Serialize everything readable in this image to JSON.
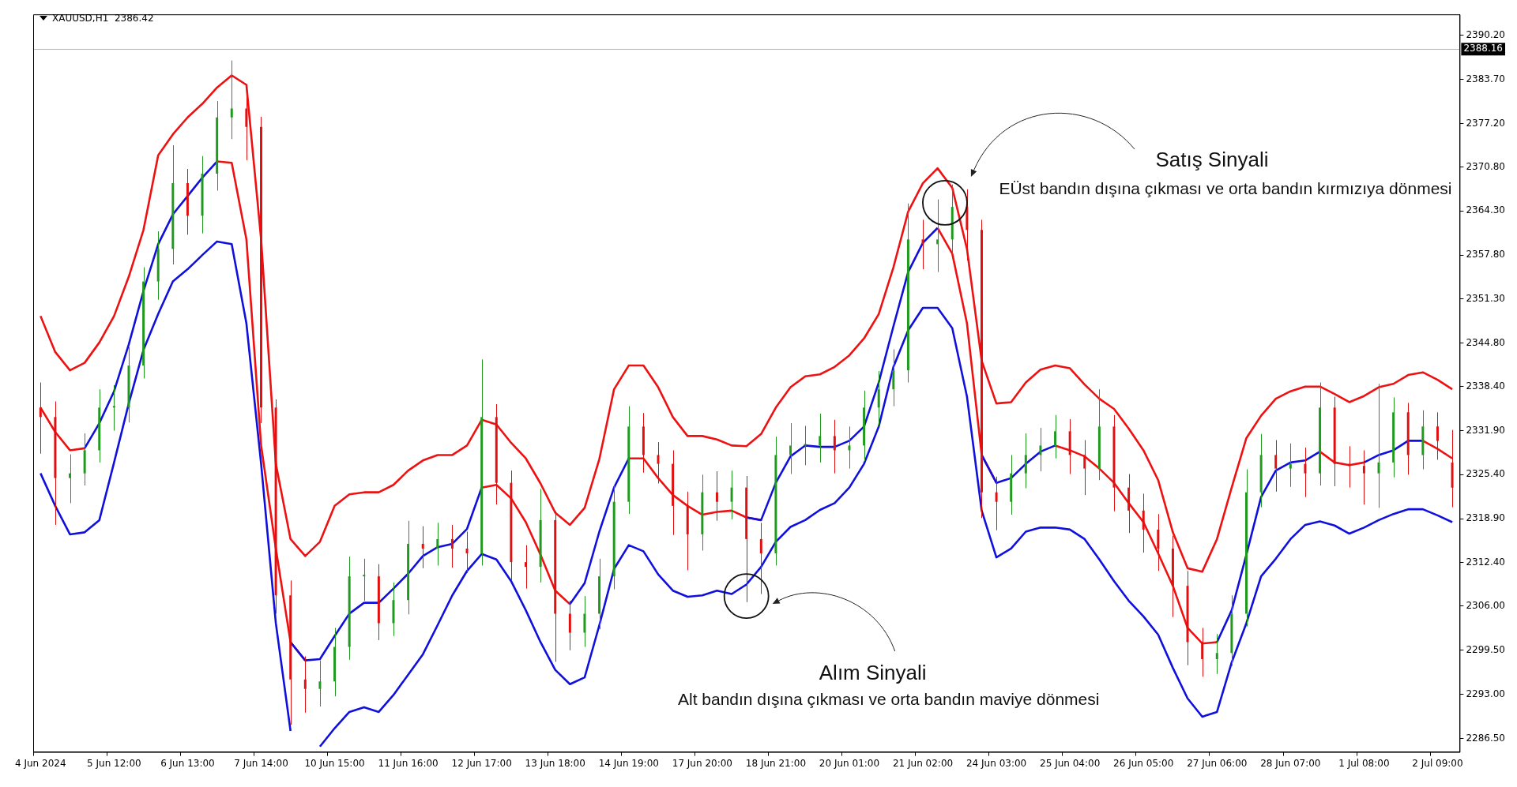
{
  "chart_data": {
    "type": "candlestick",
    "title": "XAUUSD,H1  2386.42",
    "categories": [
      "4 Jun 2024",
      null,
      null,
      null,
      null,
      "5 Jun 12:00",
      null,
      null,
      null,
      null,
      "6 Jun 13:00",
      null,
      null,
      null,
      null,
      "7 Jun 14:00",
      null,
      null,
      null,
      null,
      "10 Jun 15:00",
      null,
      null,
      null,
      null,
      "11 Jun 16:00",
      null,
      null,
      null,
      null,
      "12 Jun 17:00",
      null,
      null,
      null,
      null,
      "13 Jun 18:00",
      null,
      null,
      null,
      null,
      "14 Jun 19:00",
      null,
      null,
      null,
      null,
      "17 Jun 20:00",
      null,
      null,
      null,
      null,
      "18 Jun 21:00",
      null,
      null,
      null,
      null,
      "20 Jun 01:00",
      null,
      null,
      null,
      null,
      "21 Jun 02:00",
      null,
      null,
      null,
      null,
      "24 Jun 03:00",
      null,
      null,
      null,
      null,
      "25 Jun 04:00",
      null,
      null,
      null,
      null,
      "26 Jun 05:00",
      null,
      null,
      null,
      null,
      "27 Jun 06:00",
      null,
      null,
      null,
      null,
      "28 Jun 07:00",
      null,
      null,
      null,
      null,
      "1 Jul 08:00",
      null,
      null,
      null,
      null,
      "2 Jul 09:00",
      null
    ],
    "ohlc": [
      [
        2335.3,
        2339.0,
        2328.5,
        2333.9
      ],
      [
        2333.9,
        2336.2,
        2318.0,
        2324.9
      ],
      [
        2324.9,
        2328.4,
        2321.2,
        2325.6
      ],
      [
        2325.6,
        2331.5,
        2323.8,
        2329.0
      ],
      [
        2329.0,
        2338.0,
        2327.2,
        2335.3
      ],
      [
        2335.3,
        2338.6,
        2331.9,
        2335.3
      ],
      [
        2335.3,
        2344.2,
        2333.1,
        2341.5
      ],
      [
        2341.5,
        2356.0,
        2339.6,
        2353.9
      ],
      [
        2353.9,
        2361.3,
        2351.2,
        2358.7
      ],
      [
        2358.7,
        2374.0,
        2356.4,
        2368.4
      ],
      [
        2368.4,
        2370.5,
        2360.8,
        2363.6
      ],
      [
        2363.6,
        2372.4,
        2361.0,
        2369.8
      ],
      [
        2369.8,
        2380.5,
        2367.3,
        2378.1
      ],
      [
        2378.1,
        2386.5,
        2374.9,
        2379.4
      ],
      [
        2379.4,
        2383.0,
        2371.8,
        2376.7
      ],
      [
        2376.7,
        2378.2,
        2333.0,
        2335.3
      ],
      [
        2335.3,
        2336.5,
        2304.9,
        2307.6
      ],
      [
        2307.6,
        2309.8,
        2288.5,
        2295.2
      ],
      [
        2295.2,
        2298.6,
        2290.3,
        2293.8
      ],
      [
        2293.8,
        2298.0,
        2291.2,
        2294.9
      ],
      [
        2294.9,
        2302.8,
        2292.7,
        2300.0
      ],
      [
        2300.0,
        2313.3,
        2298.1,
        2310.4
      ],
      [
        2310.4,
        2313.0,
        2306.8,
        2310.4
      ],
      [
        2310.4,
        2312.2,
        2301.0,
        2303.5
      ],
      [
        2303.5,
        2309.5,
        2301.6,
        2306.9
      ],
      [
        2306.9,
        2318.6,
        2304.8,
        2315.2
      ],
      [
        2315.2,
        2317.8,
        2311.6,
        2314.5
      ],
      [
        2314.5,
        2318.3,
        2312.0,
        2315.9
      ],
      [
        2315.9,
        2318.0,
        2311.7,
        2314.5
      ],
      [
        2314.5,
        2317.0,
        2310.9,
        2313.8
      ],
      [
        2313.8,
        2342.4,
        2312.0,
        2333.9
      ],
      [
        2333.9,
        2335.8,
        2321.0,
        2324.2
      ],
      [
        2324.2,
        2326.0,
        2309.8,
        2312.5
      ],
      [
        2312.5,
        2315.0,
        2308.6,
        2311.8
      ],
      [
        2311.8,
        2323.3,
        2309.5,
        2318.7
      ],
      [
        2318.7,
        2320.0,
        2297.8,
        2304.9
      ],
      [
        2304.9,
        2306.8,
        2299.5,
        2302.1
      ],
      [
        2302.1,
        2307.5,
        2300.0,
        2304.9
      ],
      [
        2304.9,
        2313.0,
        2302.6,
        2310.4
      ],
      [
        2310.4,
        2323.8,
        2308.5,
        2321.4
      ],
      [
        2321.4,
        2335.5,
        2319.6,
        2332.5
      ],
      [
        2332.5,
        2334.5,
        2325.7,
        2328.3
      ],
      [
        2328.3,
        2330.2,
        2324.1,
        2327.0
      ],
      [
        2327.0,
        2329.0,
        2316.5,
        2320.8
      ],
      [
        2320.8,
        2322.9,
        2311.3,
        2316.6
      ],
      [
        2316.6,
        2325.4,
        2314.2,
        2322.8
      ],
      [
        2322.8,
        2325.9,
        2318.6,
        2321.4
      ],
      [
        2321.4,
        2326.0,
        2318.8,
        2323.5
      ],
      [
        2323.5,
        2325.2,
        2306.6,
        2315.9
      ],
      [
        2315.9,
        2318.3,
        2307.8,
        2313.8
      ],
      [
        2313.8,
        2331.0,
        2312.0,
        2328.3
      ],
      [
        2328.3,
        2333.0,
        2325.5,
        2329.7
      ],
      [
        2329.7,
        2332.6,
        2326.8,
        2329.7
      ],
      [
        2329.7,
        2334.4,
        2327.2,
        2331.1
      ],
      [
        2331.1,
        2333.5,
        2325.6,
        2329.0
      ],
      [
        2329.0,
        2332.5,
        2326.3,
        2329.7
      ],
      [
        2329.7,
        2337.8,
        2327.4,
        2335.3
      ],
      [
        2335.3,
        2340.7,
        2332.6,
        2338.0
      ],
      [
        2338.0,
        2343.9,
        2335.5,
        2340.8
      ],
      [
        2340.8,
        2365.4,
        2339.0,
        2360.1
      ],
      [
        2360.1,
        2363.0,
        2355.7,
        2359.4
      ],
      [
        2359.4,
        2366.0,
        2355.3,
        2360.1
      ],
      [
        2360.1,
        2368.2,
        2357.9,
        2364.9
      ],
      [
        2364.9,
        2367.5,
        2357.0,
        2361.5
      ],
      [
        2361.5,
        2363.0,
        2319.0,
        2322.8
      ],
      [
        2322.8,
        2325.1,
        2317.2,
        2321.4
      ],
      [
        2321.4,
        2328.3,
        2319.5,
        2325.6
      ],
      [
        2325.6,
        2331.5,
        2323.4,
        2328.3
      ],
      [
        2328.3,
        2332.3,
        2325.9,
        2329.7
      ],
      [
        2329.7,
        2334.2,
        2327.8,
        2331.8
      ],
      [
        2331.8,
        2333.6,
        2325.5,
        2328.3
      ],
      [
        2328.3,
        2330.5,
        2322.4,
        2326.3
      ],
      [
        2326.3,
        2338.0,
        2324.6,
        2332.5
      ],
      [
        2332.5,
        2334.2,
        2320.0,
        2323.5
      ],
      [
        2323.5,
        2325.5,
        2316.8,
        2320.1
      ],
      [
        2320.1,
        2322.6,
        2313.9,
        2317.3
      ],
      [
        2317.3,
        2319.6,
        2311.2,
        2314.5
      ],
      [
        2314.5,
        2316.4,
        2304.4,
        2309.0
      ],
      [
        2309.0,
        2311.2,
        2297.3,
        2300.7
      ],
      [
        2300.7,
        2302.8,
        2295.6,
        2298.2
      ],
      [
        2298.2,
        2301.9,
        2296.0,
        2299.1
      ],
      [
        2299.1,
        2307.6,
        2297.2,
        2304.9
      ],
      [
        2304.9,
        2326.2,
        2303.0,
        2322.8
      ],
      [
        2322.8,
        2331.4,
        2320.6,
        2328.3
      ],
      [
        2328.3,
        2330.5,
        2322.9,
        2326.3
      ],
      [
        2326.3,
        2330.0,
        2323.6,
        2327.0
      ],
      [
        2327.0,
        2329.4,
        2322.1,
        2325.6
      ],
      [
        2325.6,
        2339.0,
        2323.8,
        2335.3
      ],
      [
        2335.3,
        2336.9,
        2323.7,
        2327.0
      ],
      [
        2327.0,
        2329.6,
        2323.5,
        2326.7
      ],
      [
        2326.7,
        2329.0,
        2321.0,
        2325.6
      ],
      [
        2325.6,
        2338.8,
        2320.5,
        2327.2
      ],
      [
        2327.2,
        2336.8,
        2325.0,
        2334.6
      ],
      [
        2334.6,
        2336.0,
        2325.4,
        2328.3
      ],
      [
        2328.3,
        2334.9,
        2326.2,
        2332.5
      ],
      [
        2332.5,
        2334.6,
        2327.6,
        2330.4
      ],
      [
        2327.2,
        2332.0,
        2320.6,
        2323.5
      ]
    ],
    "colors": [
      "#e01010",
      "#e01010",
      "#1f9a1f",
      "#1f9a1f",
      "#1f9a1f",
      "#1f9a1f",
      "#1f9a1f",
      "#1f9a1f",
      "#1f9a1f",
      "#1f9a1f",
      "#e01010",
      "#1f9a1f",
      "#1f9a1f",
      "#1f9a1f",
      "#e01010",
      "#e01010",
      "#e01010",
      "#e01010",
      "#e01010",
      "#1f9a1f",
      "#1f9a1f",
      "#1f9a1f",
      "#1f9a1f",
      "#e01010",
      "#1f9a1f",
      "#1f9a1f",
      "#e01010",
      "#1f9a1f",
      "#e01010",
      "#e01010",
      "#1f9a1f",
      "#e01010",
      "#e01010",
      "#e01010",
      "#1f9a1f",
      "#e01010",
      "#e01010",
      "#1f9a1f",
      "#1f9a1f",
      "#1f9a1f",
      "#1f9a1f",
      "#e01010",
      "#e01010",
      "#e01010",
      "#e01010",
      "#1f9a1f",
      "#e01010",
      "#1f9a1f",
      "#e01010",
      "#e01010",
      "#1f9a1f",
      "#1f9a1f",
      "#1f9a1f",
      "#1f9a1f",
      "#e01010",
      "#1f9a1f",
      "#1f9a1f",
      "#1f9a1f",
      "#1f9a1f",
      "#1f9a1f",
      "#e01010",
      "#1f9a1f",
      "#1f9a1f",
      "#e01010",
      "#e01010",
      "#e01010",
      "#1f9a1f",
      "#1f9a1f",
      "#1f9a1f",
      "#1f9a1f",
      "#e01010",
      "#e01010",
      "#1f9a1f",
      "#e01010",
      "#e01010",
      "#e01010",
      "#e01010",
      "#e01010",
      "#e01010",
      "#e01010",
      "#1f9a1f",
      "#1f9a1f",
      "#1f9a1f",
      "#1f9a1f",
      "#e01010",
      "#1f9a1f",
      "#e01010",
      "#1f9a1f",
      "#e01010",
      "#e01010",
      "#e01010",
      "#1f9a1f",
      "#1f9a1f",
      "#e01010",
      "#1f9a1f",
      "#e01010",
      "#e01010"
    ],
    "series": [
      {
        "type": "line",
        "color": "#ee1111",
        "values": [
          2348.8,
          2343.5,
          2340.8,
          2341.9,
          2344.9,
          2348.8,
          2354.6,
          2361.5,
          2372.5,
          2375.6,
          2378.1,
          2380.1,
          2382.5,
          2384.3,
          2382.9,
          2360.1,
          2327.0,
          2315.9,
          2313.4,
          2315.5,
          2320.8,
          2322.5,
          2322.8,
          2322.8,
          2323.9,
          2326.0,
          2327.5,
          2328.3,
          2328.3,
          2329.7,
          2333.5,
          2332.8,
          2330.1,
          2327.8,
          2324.1,
          2319.8,
          2318.0,
          2320.5,
          2327.7,
          2338.0,
          2341.5,
          2341.5,
          2338.3,
          2333.9,
          2331.1,
          2331.1,
          2330.6,
          2329.7,
          2329.6,
          2331.4,
          2335.3,
          2338.3,
          2339.9,
          2340.2,
          2341.3,
          2343.0,
          2345.5,
          2349.1,
          2356.0,
          2364.2,
          2368.4,
          2370.6,
          2367.7,
          2358.7,
          2342.2,
          2335.9,
          2336.1,
          2339.0,
          2340.9,
          2341.5,
          2341.1,
          2338.7,
          2336.6,
          2335.1,
          2332.2,
          2329.0,
          2324.6,
          2316.9,
          2311.6,
          2311.1,
          2315.9,
          2323.5,
          2330.8,
          2334.1,
          2336.6,
          2337.7,
          2338.4,
          2338.4,
          2337.3,
          2336.1,
          2337.0,
          2338.3,
          2338.8,
          2340.1,
          2340.5,
          2339.4,
          2338.0
        ]
      },
      {
        "type": "line",
        "color": "#1010dd",
        "values": [
          null,
          null,
          null,
          2329.3,
          2333.0,
          2337.7,
          2344.6,
          2352.5,
          2359.4,
          2363.8,
          2366.5,
          2369.2,
          2371.6,
          null,
          null,
          null,
          null,
          2300.7,
          2298.0,
          2298.2,
          2301.6,
          2304.9,
          2306.5,
          2306.5,
          2308.6,
          2310.8,
          2313.4,
          2314.7,
          2315.2,
          2317.4,
          2323.5,
          null,
          null,
          null,
          null,
          null,
          2306.3,
          2309.4,
          2317.0,
          2323.5,
          2327.8,
          null,
          null,
          null,
          null,
          null,
          null,
          null,
          2319.1,
          2318.7,
          2324.2,
          2328.1,
          2329.7,
          2329.5,
          2329.5,
          2330.4,
          2332.5,
          2339.0,
          2347.3,
          2355.3,
          2359.6,
          2361.8,
          null,
          null,
          2328.3,
          2324.2,
          2324.9,
          2327.0,
          2328.8,
          2329.7,
          null,
          null,
          null,
          null,
          null,
          null,
          null,
          null,
          null,
          null,
          2300.7,
          2305.4,
          2313.6,
          2322.1,
          2326.0,
          2327.2,
          2327.5,
          2328.8,
          null,
          null,
          2327.2,
          2328.3,
          2329.0,
          2330.4,
          2330.4,
          null,
          null
        ]
      },
      {
        "type": "line",
        "color": "#ee1111",
        "values": [
          2335.3,
          2331.7,
          2329.0,
          2329.3,
          null,
          null,
          null,
          null,
          null,
          null,
          null,
          null,
          2371.6,
          2371.4,
          2360.1,
          2329.7,
          2314.5,
          2300.7,
          2298.0,
          null,
          null,
          null,
          null,
          null,
          null,
          null,
          null,
          null,
          null,
          null,
          2323.5,
          2323.9,
          2321.9,
          2318.4,
          2313.6,
          2308.3,
          2306.3,
          null,
          null,
          null,
          2327.8,
          2327.8,
          2324.9,
          2322.4,
          2320.8,
          2319.5,
          2319.9,
          2320.1,
          2319.1,
          2318.7,
          null,
          null,
          null,
          null,
          null,
          null,
          null,
          null,
          null,
          null,
          null,
          2361.8,
          2358.0,
          2347.7,
          2328.3,
          2324.2,
          null,
          null,
          null,
          2329.7,
          2329.0,
          2328.1,
          2326.3,
          2324.2,
          2321.2,
          2318.4,
          2313.8,
          2309.0,
          2302.8,
          2300.5,
          2300.7,
          null,
          null,
          null,
          null,
          null,
          null,
          2328.8,
          2327.2,
          2326.8,
          2327.2,
          null,
          null,
          null,
          2330.4,
          2329.2,
          2327.8
        ]
      },
      {
        "type": "line",
        "color": "#1010dd",
        "values": [
          2325.6,
          2320.8,
          2316.6,
          2316.9,
          2318.7,
          2327.2,
          2335.9,
          2343.8,
          2349.1,
          2353.9,
          2355.7,
          2357.8,
          2359.8,
          2359.4,
          2347.7,
          2327.0,
          2303.5,
          2287.6,
          null,
          2285.3,
          2288.0,
          2290.4,
          2291.1,
          2290.4,
          2292.9,
          2295.9,
          2298.9,
          2303.2,
          2307.6,
          2311.2,
          2313.7,
          2312.9,
          2309.7,
          2305.4,
          2300.7,
          2296.6,
          2294.5,
          2295.5,
          2303.2,
          2311.5,
          2315.0,
          2314.1,
          2310.7,
          2308.3,
          2307.4,
          2307.6,
          2308.3,
          2307.8,
          2309.2,
          2311.8,
          2315.5,
          2317.7,
          2318.7,
          2320.2,
          2321.2,
          2323.5,
          2327.0,
          2332.5,
          2341.3,
          2346.7,
          2350.0,
          2350.0,
          2347.0,
          2336.9,
          2320.1,
          2313.2,
          2314.5,
          2317.0,
          2317.6,
          2317.6,
          2317.3,
          2315.9,
          2312.9,
          2309.7,
          2306.8,
          2304.5,
          2301.8,
          2296.9,
          2292.4,
          2289.7,
          2290.4,
          2297.7,
          2303.5,
          2310.4,
          2313.0,
          2315.9,
          2318.0,
          2318.5,
          2317.9,
          2316.7,
          2317.6,
          2318.7,
          2319.6,
          2320.3,
          2320.3,
          2319.4,
          2318.4
        ]
      }
    ],
    "ylim": [
      2284.5,
      2393.3
    ],
    "yticks": [
      {
        "value": 2286.5,
        "label": "2286.50"
      },
      {
        "value": 2293.0,
        "label": "2293.00"
      },
      {
        "value": 2299.5,
        "label": "2299.50"
      },
      {
        "value": 2306.0,
        "label": "2306.00"
      },
      {
        "value": 2312.4,
        "label": "2312.40"
      },
      {
        "value": 2318.9,
        "label": "2318.90"
      },
      {
        "value": 2325.4,
        "label": "2325.40"
      },
      {
        "value": 2331.9,
        "label": "2331.90"
      },
      {
        "value": 2338.4,
        "label": "2338.40"
      },
      {
        "value": 2344.8,
        "label": "2344.80"
      },
      {
        "value": 2351.3,
        "label": "2351.30"
      },
      {
        "value": 2357.8,
        "label": "2357.80"
      },
      {
        "value": 2364.3,
        "label": "2364.30"
      },
      {
        "value": 2370.8,
        "label": "2370.80"
      },
      {
        "value": 2377.2,
        "label": "2377.20"
      },
      {
        "value": 2383.7,
        "label": "2383.70"
      },
      {
        "value": 2390.2,
        "label": "2390.20"
      }
    ],
    "ref_lines": [
      {
        "axis": "y",
        "value": 2388.16,
        "label": "2388.16",
        "color": "#b8b8b8"
      }
    ],
    "annotations": [
      "Satış Sinyali",
      "EÜst bandın dışına çıkması ve orta bandın kırmızıya dönmesi",
      "Alım Sinyali",
      "Alt bandın dışına çıkması ve orta bandın maviye dönmesi"
    ]
  }
}
